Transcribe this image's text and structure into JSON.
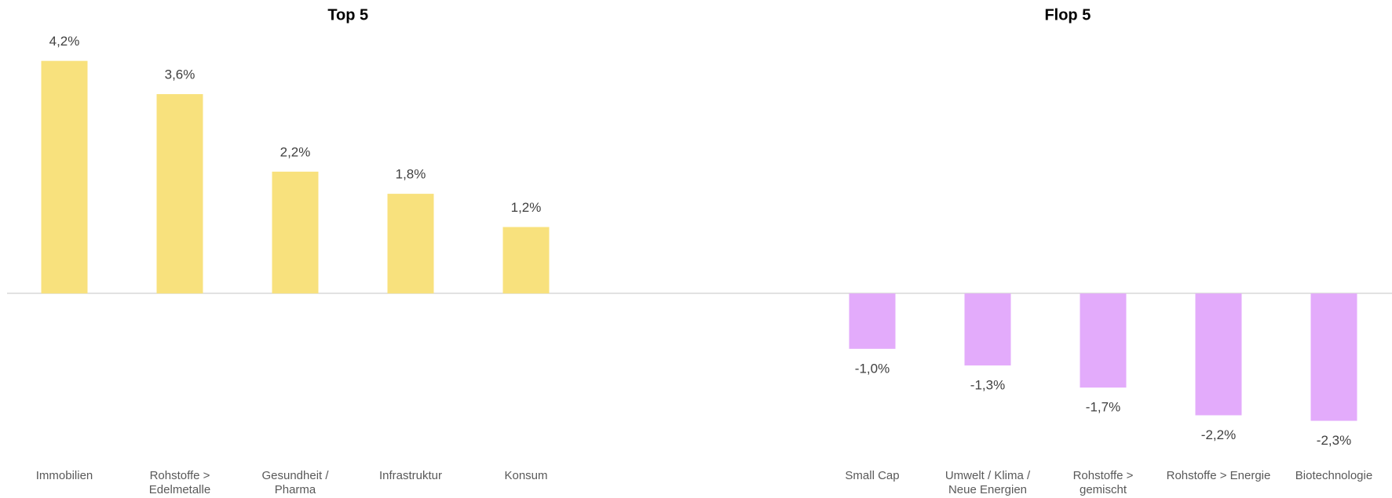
{
  "chart_data": {
    "type": "bar",
    "categories": [
      "Immobilien",
      "Rohstoffe > Edelmetalle",
      "Gesundheit / Pharma",
      "Infrastruktur",
      "Konsum",
      null,
      null,
      "Small Cap",
      "Umwelt / Klima / Neue Energien",
      "Rohstoffe > gemischt",
      "Rohstoffe > Energie",
      "Biotechnologie"
    ],
    "series": [
      {
        "name": "Top 5",
        "color": "#f8e17d",
        "values": [
          4.2,
          3.6,
          2.2,
          1.8,
          1.2,
          null,
          null,
          null,
          null,
          null,
          null,
          null
        ],
        "value_labels": [
          "4,2%",
          "3,6%",
          "2,2%",
          "1,8%",
          "1,2%",
          null,
          null,
          null,
          null,
          null,
          null,
          null
        ]
      },
      {
        "name": "Flop 5",
        "color": "#e3abfb",
        "values": [
          null,
          null,
          null,
          null,
          null,
          null,
          null,
          -1.0,
          -1.3,
          -1.7,
          -2.2,
          -2.3
        ],
        "value_labels": [
          null,
          null,
          null,
          null,
          null,
          null,
          null,
          "-1,0%",
          "-1,3%",
          "-1,7%",
          "-2,2%",
          "-2,3%"
        ]
      }
    ],
    "ylim": [
      -3,
      5.3
    ]
  }
}
